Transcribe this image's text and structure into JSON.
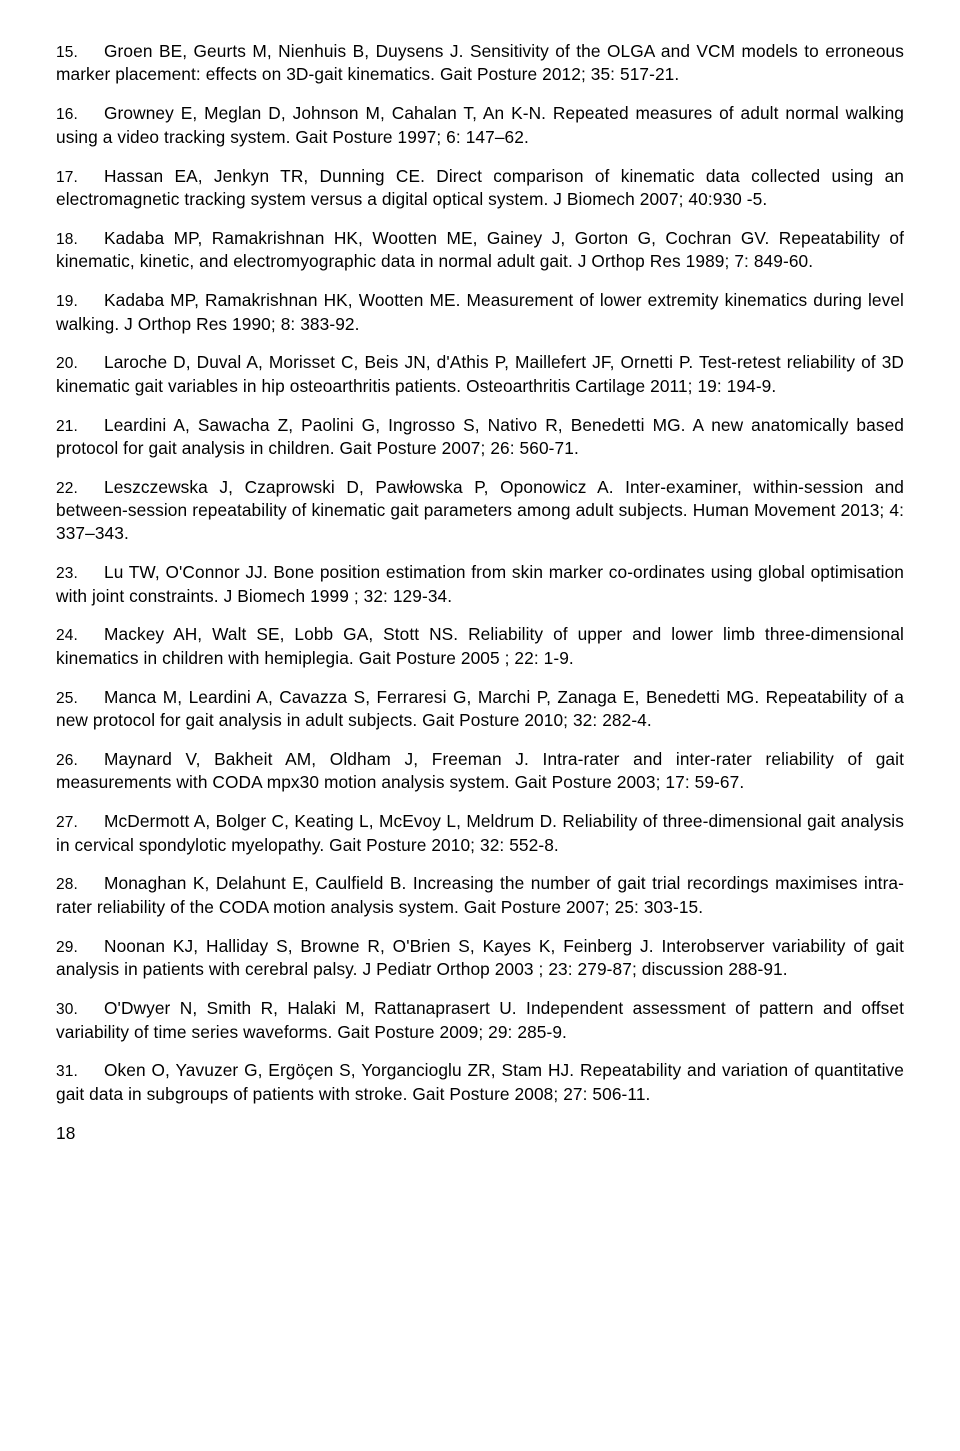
{
  "references": [
    {
      "num": "15.",
      "text": "Groen BE, Geurts M, Nienhuis B, Duysens J. Sensitivity of the OLGA and VCM models to erroneous marker placement: effects on 3D-gait kinematics. Gait Posture 2012; 35: 517-21."
    },
    {
      "num": "16.",
      "text": "Growney E, Meglan D, Johnson M, Cahalan T, An K-N. Repeated measures of adult normal walking using a video tracking system. Gait Posture 1997; 6: 147–62."
    },
    {
      "num": "17.",
      "text": "Hassan EA, Jenkyn TR, Dunning CE. Direct comparison of kinematic data collected using an electromagnetic tracking system versus a digital optical system. J Biomech 2007; 40:930 -5."
    },
    {
      "num": "18.",
      "text": "Kadaba MP, Ramakrishnan HK, Wootten ME, Gainey J, Gorton G, Cochran GV. Repeatability of kinematic, kinetic, and electromyographic data in normal adult gait. J Orthop Res 1989; 7: 849-60."
    },
    {
      "num": "19.",
      "text": "Kadaba MP, Ramakrishnan HK, Wootten ME. Measurement of lower extremity kinematics during level walking. J Orthop Res 1990; 8: 383-92."
    },
    {
      "num": "20.",
      "text": "Laroche D, Duval A, Morisset C, Beis JN, d'Athis P, Maillefert JF, Ornetti P. Test-retest reliability of 3D kinematic gait variables in hip osteoarthritis patients. Osteoarthritis Cartilage 2011; 19: 194-9."
    },
    {
      "num": "21.",
      "text": "Leardini A, Sawacha Z, Paolini G, Ingrosso S, Nativo R, Benedetti MG. A new anatomically based protocol for gait analysis in children. Gait Posture 2007; 26: 560-71."
    },
    {
      "num": "22.",
      "text": "Leszczewska J, Czaprowski D, Pawłowska P, Oponowicz A. Inter-examiner, within-session and between-session repeatability of kinematic gait parameters among adult subjects. Human Movement 2013; 4: 337–343."
    },
    {
      "num": "23.",
      "text": "Lu TW, O'Connor JJ. Bone position estimation from skin marker co-ordinates using global optimisation with joint constraints. J Biomech 1999 ; 32: 129-34."
    },
    {
      "num": "24.",
      "text": "Mackey AH, Walt SE, Lobb GA, Stott NS. Reliability of upper and lower limb three-dimensional kinematics in children with hemiplegia. Gait Posture 2005 ; 22: 1-9."
    },
    {
      "num": "25.",
      "text": "Manca M, Leardini A, Cavazza S, Ferraresi G, Marchi P, Zanaga E, Benedetti MG. Repeatability of a new protocol for gait analysis in adult subjects. Gait Posture 2010; 32: 282-4."
    },
    {
      "num": "26.",
      "text": "Maynard V, Bakheit AM, Oldham J, Freeman J. Intra-rater and inter-rater reliability of gait measurements with CODA mpx30 motion analysis system. Gait Posture 2003; 17: 59-67."
    },
    {
      "num": "27.",
      "text": "McDermott A, Bolger C, Keating L, McEvoy L, Meldrum D. Reliability of three-dimensional gait analysis in cervical spondylotic myelopathy. Gait Posture 2010; 32: 552-8."
    },
    {
      "num": "28.",
      "text": "Monaghan K, Delahunt E, Caulfield B. Increasing the number of gait trial recordings maximises intra-rater reliability of the CODA motion analysis system. Gait Posture 2007; 25: 303-15."
    },
    {
      "num": "29.",
      "text": "Noonan KJ, Halliday S, Browne R, O'Brien S, Kayes K, Feinberg J. Interobserver variability of gait analysis in patients with cerebral palsy. J Pediatr Orthop 2003 ; 23: 279-87; discussion 288-91."
    },
    {
      "num": "30.",
      "text": "O'Dwyer N, Smith R, Halaki M, Rattanaprasert U. Independent assessment of pattern and offset variability of time series waveforms. Gait Posture 2009; 29: 285-9."
    },
    {
      "num": "31.",
      "text": "Oken O, Yavuzer G, Ergöçen S, Yorgancioglu ZR, Stam HJ. Repeatability and variation of quantitative gait data in subgroups of patients with stroke. Gait Posture 2008; 27: 506-11."
    }
  ],
  "page_number": "18"
}
